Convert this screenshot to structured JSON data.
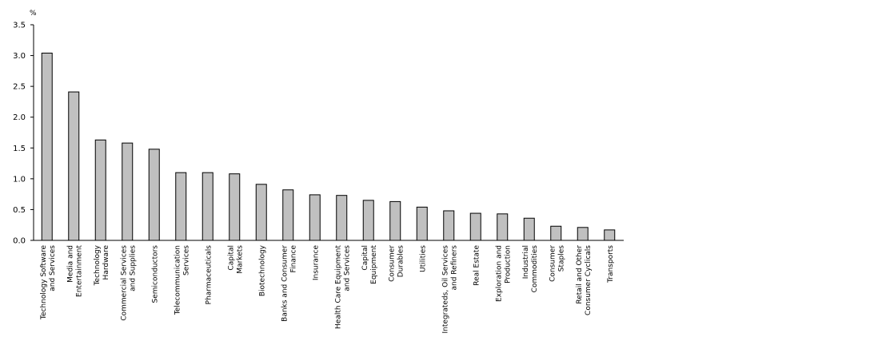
{
  "chart_data": {
    "type": "bar",
    "title": "",
    "xlabel": "",
    "ylabel": "%",
    "ylim": [
      0,
      3.5
    ],
    "yticks": [
      "0.0",
      "0.5",
      "1.0",
      "1.5",
      "2.0",
      "2.5",
      "3.0",
      "3.5"
    ],
    "grid": false,
    "bar_color": "#c0c0c0",
    "categories": [
      [
        "Technology Software",
        "and Services"
      ],
      [
        "Media and",
        "Entertainment"
      ],
      [
        "Technology",
        "Hardware"
      ],
      [
        "Commercial Services",
        "and Supplies"
      ],
      [
        "Semiconductors"
      ],
      [
        "Telecommunication",
        "Services"
      ],
      [
        "Pharmaceuticals"
      ],
      [
        "Capital",
        "Markets"
      ],
      [
        "Biotechnology"
      ],
      [
        "Banks and Consumer",
        "Finance"
      ],
      [
        "Insurance"
      ],
      [
        "Health Care Equipment",
        "and Services"
      ],
      [
        "Capital",
        "Equipment"
      ],
      [
        "Consumer",
        "Durables"
      ],
      [
        "Utilities"
      ],
      [
        "Integrateds, Oil Services",
        "and Refiners"
      ],
      [
        "Real Estate"
      ],
      [
        "Exploration and",
        "Production"
      ],
      [
        "Industrial",
        "Commodities"
      ],
      [
        "Consumer",
        "Staples"
      ],
      [
        "Retail and Other",
        "Consumer Cyclicals"
      ],
      [
        "Transports"
      ]
    ],
    "values": [
      3.04,
      2.41,
      1.63,
      1.58,
      1.48,
      1.1,
      1.1,
      1.08,
      0.91,
      0.82,
      0.74,
      0.73,
      0.65,
      0.63,
      0.54,
      0.48,
      0.44,
      0.43,
      0.36,
      0.23,
      0.21,
      0.17
    ]
  }
}
